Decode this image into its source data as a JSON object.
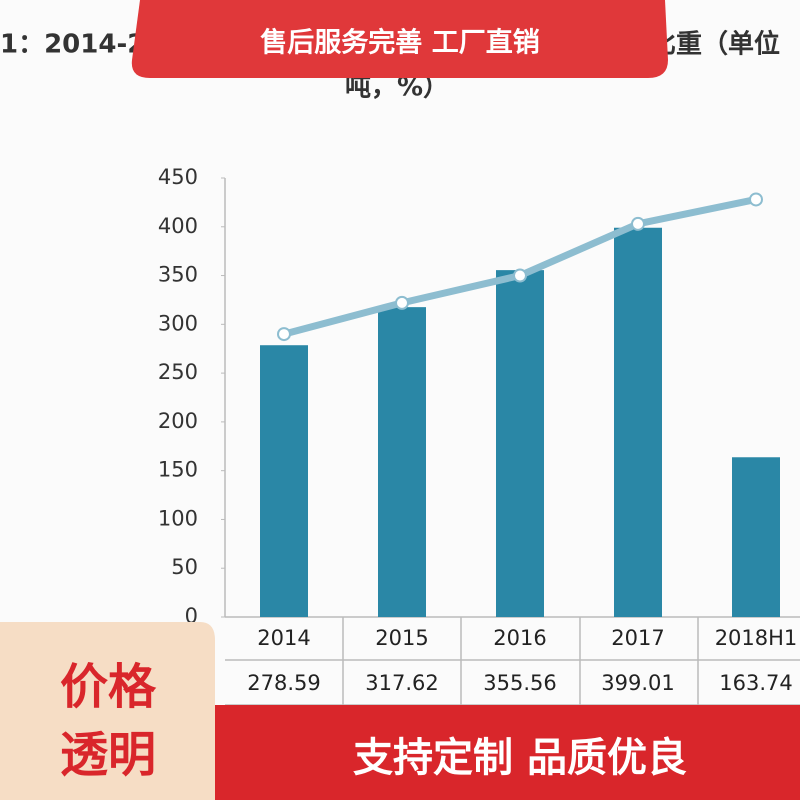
{
  "banner": "售后服务完善 工厂直销",
  "badge": [
    "价格",
    "透明"
  ],
  "footer": "支持定制 品质优良",
  "chart_data": {
    "type": "bar",
    "title": [
      "1：2014-2",
      "比重（单位",
      "吨，%）"
    ],
    "categories": [
      "2014",
      "2015",
      "2016",
      "2017",
      "2018H1"
    ],
    "series": [
      {
        "type": "bar",
        "color": "#2a87a6",
        "values": [
          278.59,
          317.62,
          355.56,
          399.01,
          163.74
        ]
      },
      {
        "type": "line",
        "color": "#8dbdd0",
        "values": [
          290,
          322,
          350,
          403,
          428
        ]
      }
    ],
    "ylim": [
      0,
      450
    ],
    "yticks": [
      0,
      50,
      100,
      150,
      200,
      250,
      300,
      350,
      400,
      450
    ]
  }
}
